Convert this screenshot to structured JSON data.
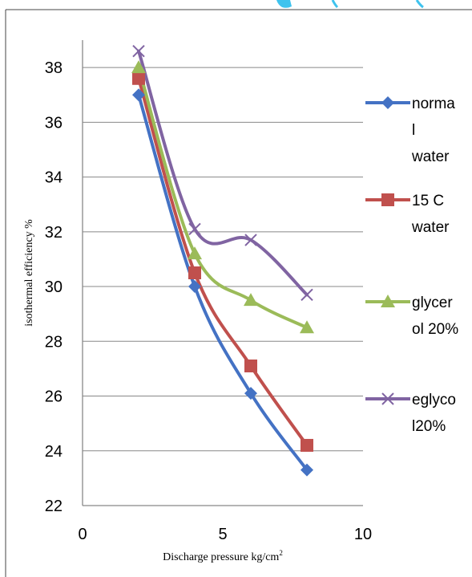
{
  "chart_data": {
    "type": "line",
    "xlabel": "Discharge pressure kg/cm",
    "xlabel_sup": "2",
    "ylabel": "isothermal efficiency %",
    "xlim": [
      0,
      10
    ],
    "ylim": [
      22,
      39
    ],
    "x_ticks": [
      "0",
      "5",
      "10"
    ],
    "y_ticks": [
      "22",
      "24",
      "26",
      "28",
      "30",
      "32",
      "34",
      "36",
      "38"
    ],
    "grid": "horizontal",
    "legend_position": "right",
    "series": [
      {
        "legend_lines": [
          "norma",
          "l",
          "water"
        ],
        "color": "#4472C4",
        "marker": "diamond",
        "x": [
          2,
          4,
          6,
          8
        ],
        "y": [
          37.0,
          30.0,
          26.1,
          23.3
        ]
      },
      {
        "legend_lines": [
          "15 C",
          "water"
        ],
        "color": "#C0504D",
        "marker": "square",
        "x": [
          2,
          4,
          6,
          8
        ],
        "y": [
          37.6,
          30.5,
          27.1,
          24.2
        ]
      },
      {
        "legend_lines": [
          "glycer",
          "ol 20%"
        ],
        "color": "#9BBB59",
        "marker": "triangle",
        "x": [
          2,
          4,
          6,
          8
        ],
        "y": [
          38.0,
          31.2,
          29.5,
          28.5
        ]
      },
      {
        "legend_lines": [
          "eglyco",
          "l20%"
        ],
        "color": "#8064A2",
        "marker": "x",
        "x": [
          2,
          4,
          6,
          8
        ],
        "y": [
          38.6,
          32.1,
          31.7,
          29.7
        ]
      }
    ]
  }
}
